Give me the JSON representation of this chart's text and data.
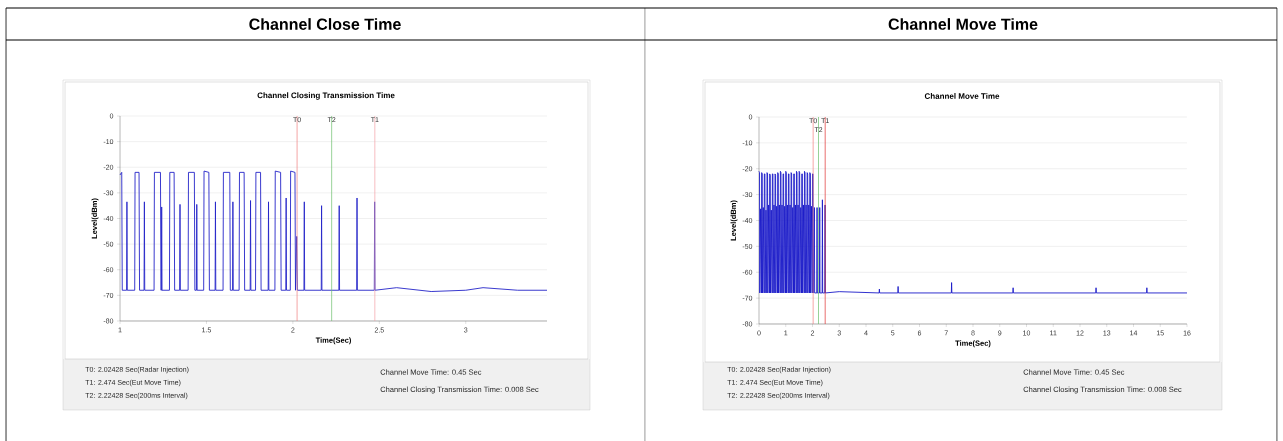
{
  "chart_data": [
    {
      "type": "line",
      "title": "Channel Close Time",
      "subtitle": "Channel Closing Transmission Time",
      "xlabel": "Time(Sec)",
      "ylabel": "Level(dBm)",
      "xlim": [
        1,
        3.47
      ],
      "xticks": [
        1,
        1.5,
        2,
        2.5,
        3
      ],
      "ylim": [
        -80,
        0
      ],
      "yticks": [
        0,
        -10,
        -20,
        -30,
        -40,
        -50,
        -60,
        -70,
        -80
      ],
      "grid": "y",
      "series": [
        {
          "color": "#2424c8",
          "x": [
            1.0,
            1.01,
            1.013,
            1.038,
            1.04,
            1.042,
            1.085,
            1.087,
            1.11,
            1.113,
            1.139,
            1.141,
            1.143,
            1.197,
            1.199,
            1.234,
            1.237,
            1.239,
            1.241,
            1.243,
            1.286,
            1.288,
            1.313,
            1.316,
            1.345,
            1.347,
            1.349,
            1.394,
            1.396,
            1.43,
            1.433,
            1.442,
            1.444,
            1.446,
            1.484,
            1.486,
            1.514,
            1.517,
            1.55,
            1.552,
            1.554,
            1.596,
            1.598,
            1.635,
            1.638,
            1.651,
            1.653,
            1.655,
            1.689,
            1.691,
            1.718,
            1.721,
            1.753,
            1.755,
            1.757,
            1.784,
            1.786,
            1.813,
            1.816,
            1.857,
            1.859,
            1.861,
            1.896,
            1.898,
            1.929,
            1.932,
            1.959,
            1.961,
            1.963,
            1.985,
            1.987,
            2.012,
            2.015,
            2.022,
            2.026,
            2.064,
            2.066,
            2.068,
            2.164,
            2.166,
            2.168,
            2.266,
            2.268,
            2.27,
            2.369,
            2.371,
            2.373,
            2.471,
            2.473,
            2.475,
            2.6,
            2.8,
            3.0,
            3.1,
            3.3,
            3.47
          ],
          "values": [
            -23,
            -22,
            -68,
            -68,
            -33.5,
            -68,
            -68,
            -22,
            -22,
            -68,
            -68,
            -33.5,
            -68,
            -68,
            -22,
            -22,
            -68,
            -68,
            -35.5,
            -68,
            -68,
            -22,
            -22,
            -68,
            -68,
            -34.5,
            -68,
            -68,
            -22,
            -22,
            -68,
            -68,
            -34.5,
            -68,
            -68,
            -21.5,
            -22,
            -68,
            -68,
            -33.5,
            -68,
            -68,
            -22,
            -22,
            -68,
            -68,
            -33.5,
            -68,
            -68,
            -22,
            -22,
            -68,
            -68,
            -33,
            -68,
            -68,
            -22,
            -22,
            -68,
            -68,
            -33.5,
            -68,
            -68,
            -21.5,
            -22,
            -68,
            -68,
            -32,
            -68,
            -68,
            -21.5,
            -22,
            -68,
            -47,
            -68,
            -68,
            -33.5,
            -68,
            -68,
            -35,
            -68,
            -68,
            -35,
            -68,
            -68,
            -32,
            -68,
            -68,
            -33.5,
            -68,
            -67,
            -68.5,
            -68,
            -67,
            -68,
            -68
          ]
        }
      ],
      "ref_lines": [
        {
          "axis": "x",
          "value": 2.02428,
          "label": "T0",
          "color": "#f08080"
        },
        {
          "axis": "x",
          "value": 2.22428,
          "label": "T2",
          "color": "#6cbf6c"
        },
        {
          "axis": "x",
          "value": 2.474,
          "label": "T1",
          "color": "#f4a0a8"
        }
      ],
      "annotations": [
        "T0: 2.02428 Sec(Radar Injection)",
        "T1: 2.474 Sec(Eut Move Time)",
        "T2: 2.22428 Sec(200ms Interval)",
        "Channel Move Time: 0.45 Sec",
        "Channel Closing Transmission Time: 0.008 Sec"
      ]
    },
    {
      "type": "line",
      "title": "Channel Move Time",
      "subtitle": "Channel Move Time",
      "xlabel": "Time(Sec)",
      "ylabel": "Level(dBm)",
      "xlim": [
        0,
        16
      ],
      "xticks": [
        0,
        1,
        2,
        3,
        4,
        5,
        6,
        7,
        8,
        9,
        10,
        11,
        12,
        13,
        14,
        15,
        16
      ],
      "ylim": [
        -80,
        0
      ],
      "yticks": [
        0,
        -10,
        -20,
        -30,
        -40,
        -50,
        -60,
        -70,
        -80
      ],
      "grid": "y",
      "series": [
        {
          "color": "#1a1ac8",
          "x": [
            0,
            0.02,
            0.03,
            0.06,
            0.09,
            0.1,
            0.12,
            0.13,
            0.16,
            0.19,
            0.2,
            0.22,
            0.23,
            0.26,
            0.29,
            0.3,
            0.32,
            0.33,
            0.36,
            0.39,
            0.4,
            0.42,
            0.43,
            0.46,
            0.49,
            0.5,
            0.52,
            0.53,
            0.56,
            0.59,
            0.6,
            0.62,
            0.63,
            0.66,
            0.69,
            0.7,
            0.72,
            0.73,
            0.76,
            0.79,
            0.8,
            0.82,
            0.83,
            0.86,
            0.89,
            0.9,
            0.92,
            0.93,
            0.96,
            0.99,
            1.0,
            1.02,
            1.03,
            1.06,
            1.09,
            1.1,
            1.12,
            1.13,
            1.16,
            1.19,
            1.2,
            1.22,
            1.23,
            1.26,
            1.29,
            1.3,
            1.32,
            1.33,
            1.36,
            1.39,
            1.4,
            1.42,
            1.43,
            1.46,
            1.49,
            1.5,
            1.52,
            1.53,
            1.56,
            1.59,
            1.6,
            1.62,
            1.63,
            1.66,
            1.69,
            1.7,
            1.72,
            1.73,
            1.76,
            1.79,
            1.8,
            1.82,
            1.83,
            1.86,
            1.89,
            1.9,
            1.92,
            1.93,
            1.96,
            1.99,
            2.0,
            2.02,
            2.03,
            2.07,
            2.08,
            2.16,
            2.17,
            2.18,
            2.26,
            2.27,
            2.28,
            2.36,
            2.37,
            2.38,
            2.46,
            2.47,
            2.48,
            3,
            4.49,
            4.5,
            4.51,
            5.19,
            5.2,
            5.21,
            7.19,
            7.2,
            7.21,
            9.49,
            9.5,
            9.51,
            12.59,
            12.6,
            12.61,
            14.49,
            14.5,
            14.51,
            16
          ],
          "values": [
            -21,
            -21.5,
            -68,
            -35.5,
            -68,
            -21.5,
            -22,
            -68,
            -35,
            -68,
            -22,
            -22,
            -68,
            -36,
            -68,
            -21.5,
            -22,
            -68,
            -34,
            -68,
            -22,
            -22.5,
            -68,
            -36,
            -68,
            -22,
            -22,
            -68,
            -34,
            -68,
            -22,
            -22.5,
            -68,
            -34.5,
            -68,
            -21.5,
            -22,
            -68,
            -34,
            -68,
            -21,
            -21.5,
            -68,
            -34,
            -68,
            -22,
            -22,
            -68,
            -34.5,
            -68,
            -21,
            -21.5,
            -68,
            -34,
            -68,
            -22,
            -22,
            -68,
            -34,
            -68,
            -21.5,
            -22,
            -68,
            -35,
            -68,
            -22,
            -22,
            -68,
            -34,
            -68,
            -21,
            -21.5,
            -68,
            -34,
            -68,
            -21,
            -21.5,
            -68,
            -35,
            -68,
            -22,
            -22,
            -68,
            -34,
            -68,
            -21,
            -21.5,
            -68,
            -34,
            -68,
            -21.5,
            -22,
            -68,
            -34,
            -68,
            -21.5,
            -22,
            -68,
            -34.5,
            -68,
            -22,
            -22,
            -68,
            -35,
            -68,
            -68,
            -35,
            -68,
            -68,
            -35,
            -68,
            -68,
            -32,
            -68,
            -68,
            -34,
            -68,
            -67.5,
            -68,
            -66.5,
            -68,
            -68,
            -65.5,
            -68,
            -68,
            -64,
            -68,
            -68,
            -66,
            -68,
            -68,
            -66,
            -68,
            -68,
            -66,
            -68,
            -68
          ]
        }
      ],
      "ref_lines": [
        {
          "axis": "x",
          "value": 2.02428,
          "label": "T0",
          "color": "#f08080"
        },
        {
          "axis": "x",
          "value": 2.22428,
          "label": "T2",
          "color": "#6cbf6c"
        },
        {
          "axis": "x",
          "value": 2.474,
          "label": "T1",
          "color": "#e03030"
        }
      ],
      "annotations": [
        "T0: 2.02428 Sec(Radar Injection)",
        "T1: 2.474 Sec(Eut Move Time)",
        "T2: 2.22428 Sec(200ms Interval)",
        "Channel Move Time: 0.45 Sec",
        "Channel Closing Transmission Time: 0.008 Sec"
      ]
    }
  ]
}
